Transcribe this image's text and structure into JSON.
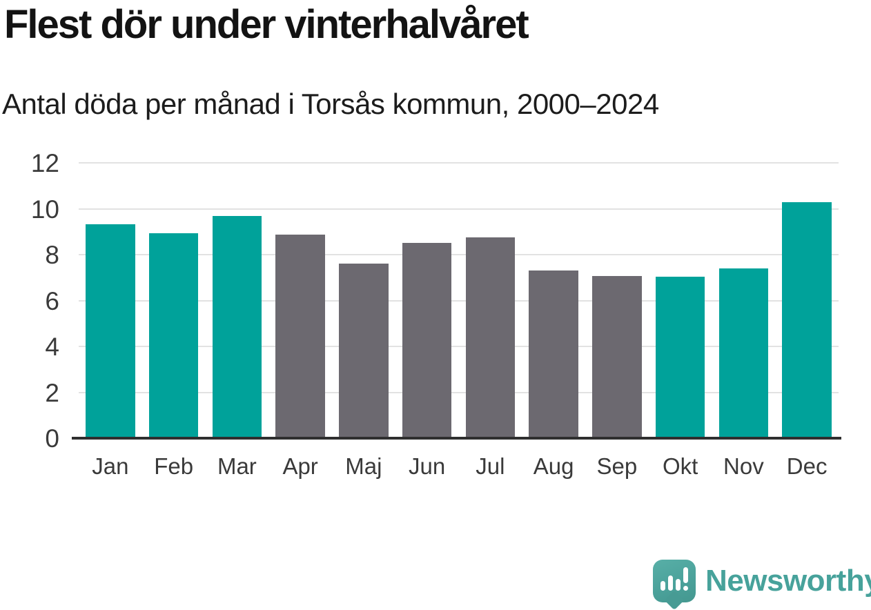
{
  "header": {
    "title": "Flest dör under vinterhalvåret",
    "subtitle": "Antal döda per månad i Torsås kommun, 2000–2024"
  },
  "chart_data": {
    "type": "bar",
    "title": "Flest dör under vinterhalvåret",
    "subtitle": "Antal döda per månad i Torsås kommun, 2000–2024",
    "categories": [
      "Jan",
      "Feb",
      "Mar",
      "Apr",
      "Maj",
      "Jun",
      "Jul",
      "Aug",
      "Sep",
      "Okt",
      "Nov",
      "Dec"
    ],
    "values": [
      9.32,
      8.92,
      9.68,
      8.88,
      7.6,
      8.52,
      8.76,
      7.32,
      7.08,
      7.04,
      7.4,
      10.28
    ],
    "bar_groups": [
      "winter",
      "winter",
      "winter",
      "summer",
      "summer",
      "summer",
      "summer",
      "summer",
      "summer",
      "winter",
      "winter",
      "winter"
    ],
    "palette": {
      "winter": "#00a29a",
      "summer": "#6c6970"
    },
    "xlabel": "",
    "ylabel": "",
    "ylim": [
      0,
      12
    ],
    "yticks": [
      0,
      2,
      4,
      6,
      8,
      10,
      12
    ],
    "grid": "horizontal-light",
    "legend": "none"
  },
  "colors": {
    "bar_winter": "#00a29a",
    "bar_summer": "#6c6970",
    "gridline": "#e2e2e2",
    "axis_line": "#2f2f2f",
    "tick_text": "#3a3a3a",
    "title_text": "#131313",
    "logo_teal": "#47a29b"
  },
  "branding": {
    "logo_icon": "newsworthy-speech-bubble-chart-icon",
    "logo_text": "Newsworthy"
  }
}
